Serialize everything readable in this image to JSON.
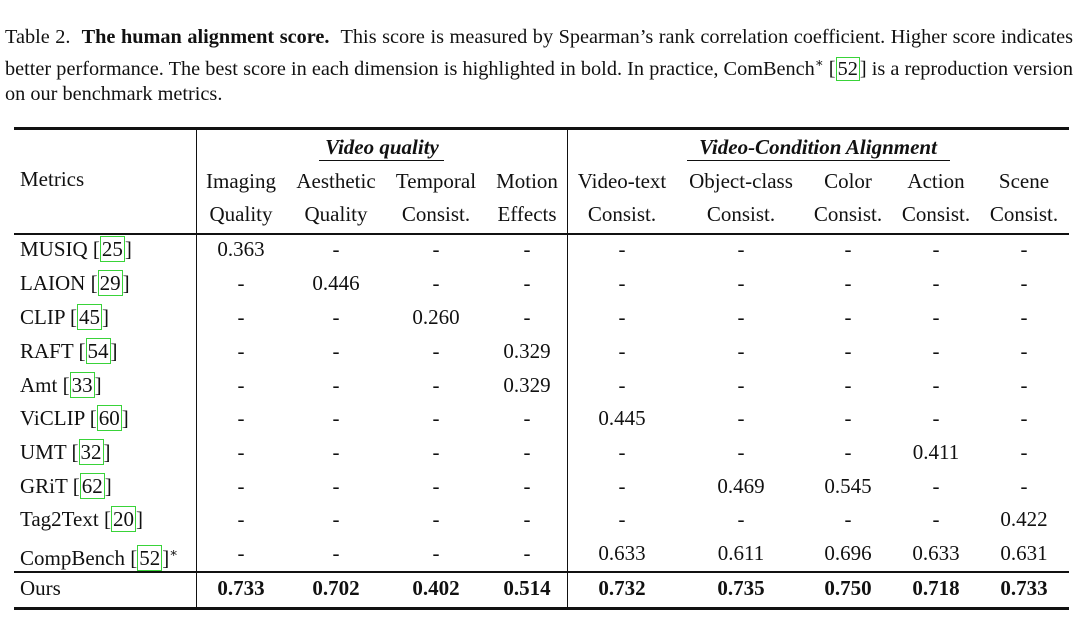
{
  "caption": {
    "lead": "Table 2.",
    "title": "The human alignment score.",
    "body1": "This score is measured by Spearman’s rank correlation coefficient.  Higher score indicates better performance.  The best score in each dimension is highlighted in bold.  In practice, ComBench",
    "star": "∗",
    "ref": "52",
    "body2": "is a reproduction version on our benchmark metrics."
  },
  "table": {
    "group_headers": [
      "Video quality",
      "Video-Condition Alignment"
    ],
    "metrics_header": "Metrics",
    "columns": [
      [
        "Imaging",
        "Quality"
      ],
      [
        "Aesthetic",
        "Quality"
      ],
      [
        "Temporal",
        "Consist."
      ],
      [
        "Motion",
        "Effects"
      ],
      [
        "Video-text",
        "Consist."
      ],
      [
        "Object-class",
        "Consist."
      ],
      [
        "Color",
        "Consist."
      ],
      [
        "Action",
        "Consist."
      ],
      [
        "Scene",
        "Consist."
      ]
    ],
    "rows": [
      {
        "name": "MUSIQ",
        "ref": "25",
        "star": "",
        "values": [
          "0.363",
          "-",
          "-",
          "-",
          "-",
          "-",
          "-",
          "-",
          "-"
        ]
      },
      {
        "name": "LAION",
        "ref": "29",
        "star": "",
        "values": [
          "-",
          "0.446",
          "-",
          "-",
          "-",
          "-",
          "-",
          "-",
          "-"
        ]
      },
      {
        "name": "CLIP",
        "ref": "45",
        "star": "",
        "values": [
          "-",
          "-",
          "0.260",
          "-",
          "-",
          "-",
          "-",
          "-",
          "-"
        ]
      },
      {
        "name": "RAFT",
        "ref": "54",
        "star": "",
        "values": [
          "-",
          "-",
          "-",
          "0.329",
          "-",
          "-",
          "-",
          "-",
          "-"
        ]
      },
      {
        "name": "Amt",
        "ref": "33",
        "star": "",
        "values": [
          "-",
          "-",
          "-",
          "0.329",
          "-",
          "-",
          "-",
          "-",
          "-"
        ]
      },
      {
        "name": "ViCLIP",
        "ref": "60",
        "star": "",
        "values": [
          "-",
          "-",
          "-",
          "-",
          "0.445",
          "-",
          "-",
          "-",
          "-"
        ]
      },
      {
        "name": "UMT",
        "ref": "32",
        "star": "",
        "values": [
          "-",
          "-",
          "-",
          "-",
          "-",
          "-",
          "-",
          "0.411",
          "-"
        ]
      },
      {
        "name": "GRiT",
        "ref": "62",
        "star": "",
        "values": [
          "-",
          "-",
          "-",
          "-",
          "-",
          "0.469",
          "0.545",
          "-",
          "-"
        ]
      },
      {
        "name": "Tag2Text",
        "ref": "20",
        "star": "",
        "values": [
          "-",
          "-",
          "-",
          "-",
          "-",
          "-",
          "-",
          "-",
          "0.422"
        ]
      },
      {
        "name": "CompBench",
        "ref": "52",
        "star": "∗",
        "values": [
          "-",
          "-",
          "-",
          "-",
          "0.633",
          "0.611",
          "0.696",
          "0.633",
          "0.631"
        ]
      }
    ],
    "ours": {
      "name": "Ours",
      "values": [
        "0.733",
        "0.702",
        "0.402",
        "0.514",
        "0.732",
        "0.735",
        "0.750",
        "0.718",
        "0.733"
      ]
    }
  }
}
